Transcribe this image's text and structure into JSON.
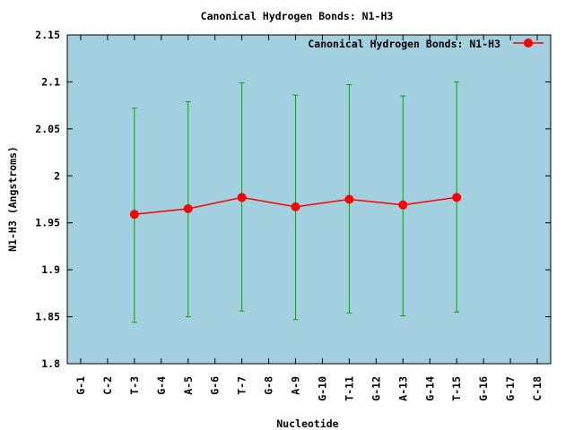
{
  "chart_data": {
    "type": "line",
    "title": "Canonical Hydrogen Bonds: N1-H3",
    "xlabel": "Nucleotide",
    "ylabel": "N1-H3 (Angstroms)",
    "categories": [
      "G-1",
      "C-2",
      "T-3",
      "G-4",
      "A-5",
      "G-6",
      "T-7",
      "G-8",
      "A-9",
      "G-10",
      "T-11",
      "G-12",
      "A-13",
      "G-14",
      "T-15",
      "G-16",
      "G-17",
      "C-18"
    ],
    "ylim": [
      1.8,
      2.15
    ],
    "yticks": [
      "1.8",
      "1.85",
      "1.9",
      "1.95",
      "2",
      "2.05",
      "2.1",
      "2.15"
    ],
    "grid": false,
    "legend_position": "top-right",
    "series": [
      {
        "name": "Canonical Hydrogen Bonds: N1-H3",
        "color": "#ff0000",
        "errorbar_color": "#00aa00",
        "points": [
          {
            "x": "T-3",
            "y": 1.959,
            "err_low": 1.844,
            "err_high": 2.072
          },
          {
            "x": "A-5",
            "y": 1.965,
            "err_low": 1.85,
            "err_high": 2.079
          },
          {
            "x": "T-7",
            "y": 1.977,
            "err_low": 1.856,
            "err_high": 2.099
          },
          {
            "x": "A-9",
            "y": 1.967,
            "err_low": 1.847,
            "err_high": 2.086
          },
          {
            "x": "T-11",
            "y": 1.975,
            "err_low": 1.854,
            "err_high": 2.097
          },
          {
            "x": "A-13",
            "y": 1.969,
            "err_low": 1.851,
            "err_high": 2.085
          },
          {
            "x": "T-15",
            "y": 1.977,
            "err_low": 1.855,
            "err_high": 2.1
          }
        ]
      }
    ],
    "plot_background": "#a3d0df"
  }
}
